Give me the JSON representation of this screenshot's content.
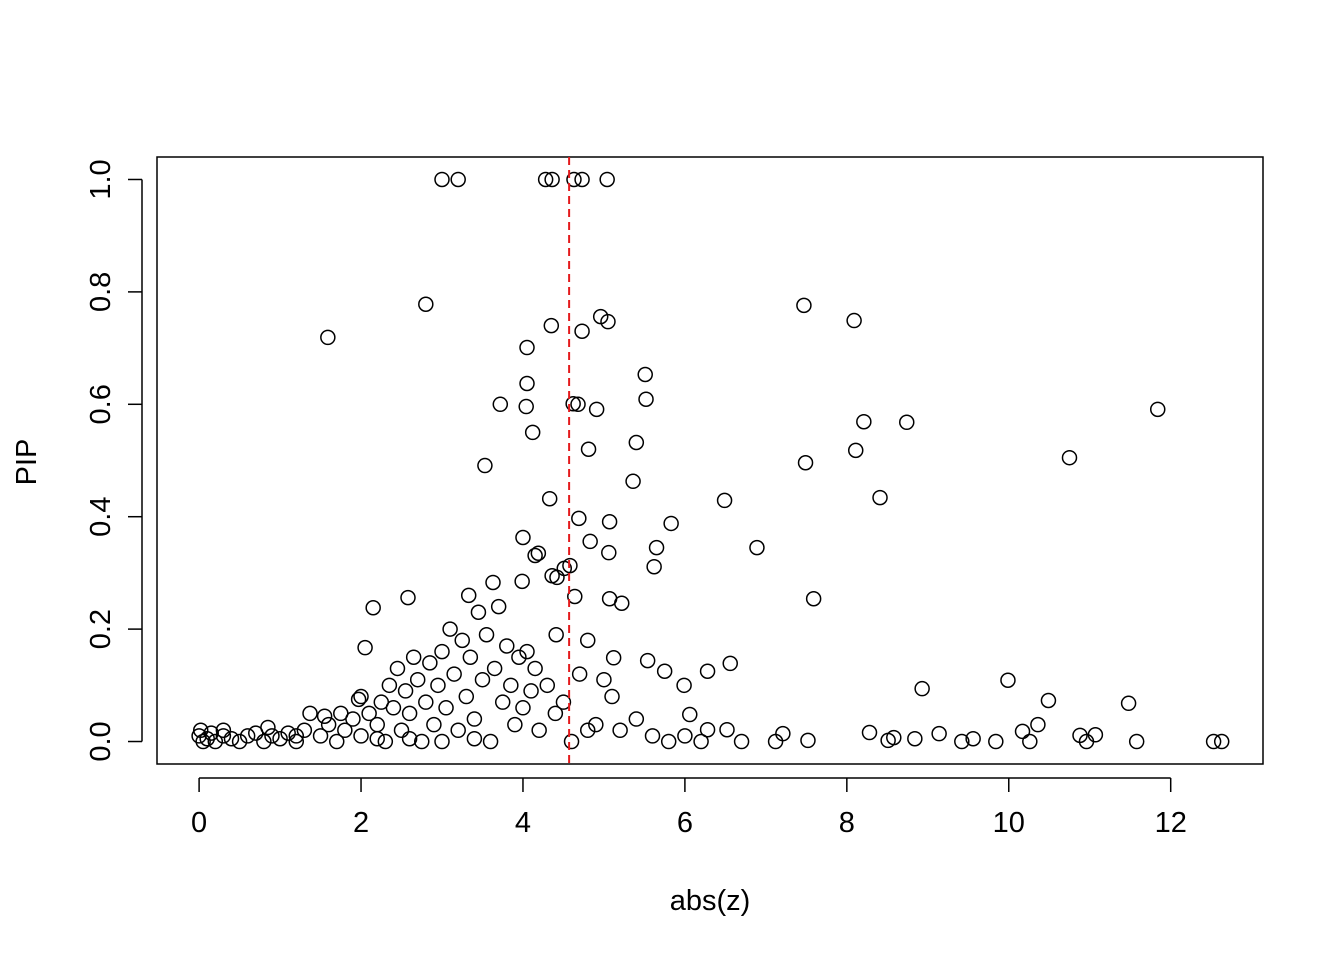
{
  "chart_data": {
    "type": "scatter",
    "x_label": "abs(z)",
    "y_label": "PIP",
    "xlim": [
      -0.52,
      13.14
    ],
    "ylim": [
      -0.04,
      1.04
    ],
    "xticks": [
      0,
      2,
      4,
      6,
      8,
      10,
      12
    ],
    "yticks": [
      {
        "value": 0,
        "label": "0.0"
      },
      {
        "value": 0.2,
        "label": "0.2"
      },
      {
        "value": 0.4,
        "label": "0.4"
      },
      {
        "value": 0.6,
        "label": "0.6"
      },
      {
        "value": 0.8,
        "label": "0.8"
      },
      {
        "value": 1,
        "label": "1.0"
      }
    ],
    "color": "#000000",
    "vline": {
      "x": 4.57,
      "color": "#e41a1c"
    },
    "x": [
      3.0,
      3.2,
      4.28,
      4.36,
      4.63,
      4.73,
      5.04,
      2.8,
      1.59,
      7.47,
      8.09,
      4.96,
      5.05,
      4.35,
      4.73,
      4.05,
      4.05,
      5.51,
      5.52,
      3.72,
      4.04,
      4.62,
      4.68,
      4.91,
      11.84,
      8.21,
      8.74,
      4.12,
      5.4,
      8.11,
      4.81,
      3.53,
      7.49,
      10.75,
      5.36,
      8.41,
      4.33,
      6.49,
      4.69,
      5.07,
      5.83,
      4.0,
      4.83,
      6.89,
      5.65,
      5.06,
      4.15,
      4.19,
      5.62,
      4.58,
      4.51,
      4.36,
      4.42,
      3.99,
      3.63,
      4.64,
      2.58,
      7.59,
      5.07,
      5.22,
      3.33,
      2.15,
      2.05,
      4.8,
      4.41,
      6.56,
      5.12,
      5.54,
      6.28,
      5.75,
      5.99,
      8.93,
      9.99,
      10.49,
      11.48,
      10.36,
      6.06,
      10.17,
      11.07,
      10.88,
      9.14,
      8.28,
      7.21,
      12.53,
      12.63,
      11.58,
      9.84,
      9.42,
      9.56,
      8.84,
      8.51,
      8.58,
      7.52,
      7.12,
      6.7,
      6.52,
      6.28,
      10.26,
      10.96,
      0.0,
      0.02,
      0.05,
      0.1,
      0.15,
      0.2,
      0.3,
      0.3,
      0.4,
      0.5,
      0.6,
      0.7,
      0.8,
      0.85,
      0.9,
      1.0,
      1.1,
      1.2,
      1.3,
      1.37,
      1.5,
      1.55,
      1.6,
      1.7,
      1.75,
      1.8,
      1.9,
      1.97,
      2.0,
      2.0,
      2.1,
      2.2,
      2.25,
      2.3,
      2.35,
      2.4,
      2.45,
      2.5,
      2.55,
      2.6,
      2.65,
      2.7,
      2.75,
      2.8,
      2.85,
      2.9,
      2.95,
      3.0,
      3.05,
      3.1,
      3.15,
      3.2,
      3.25,
      3.3,
      3.35,
      3.4,
      3.45,
      3.5,
      3.55,
      3.6,
      3.65,
      3.7,
      3.75,
      3.8,
      3.85,
      3.9,
      3.95,
      4.0,
      4.05,
      4.1,
      4.15,
      4.2,
      4.3,
      4.4,
      4.5,
      4.6,
      4.7,
      4.8,
      4.9,
      5.0,
      5.1,
      5.2,
      5.4,
      5.6,
      5.8,
      6.0,
      6.2,
      2.6,
      3.0,
      3.4,
      1.2,
      2.2
    ],
    "y": [
      1,
      1,
      1,
      1,
      1,
      1,
      1,
      0.778,
      0.719,
      0.776,
      0.749,
      0.756,
      0.747,
      0.74,
      0.73,
      0.701,
      0.637,
      0.653,
      0.609,
      0.6,
      0.596,
      0.601,
      0.6,
      0.591,
      0.591,
      0.569,
      0.568,
      0.55,
      0.532,
      0.518,
      0.52,
      0.491,
      0.496,
      0.505,
      0.463,
      0.434,
      0.432,
      0.429,
      0.397,
      0.391,
      0.388,
      0.363,
      0.356,
      0.345,
      0.345,
      0.336,
      0.331,
      0.335,
      0.311,
      0.313,
      0.308,
      0.295,
      0.292,
      0.285,
      0.283,
      0.258,
      0.256,
      0.254,
      0.254,
      0.246,
      0.26,
      0.238,
      0.167,
      0.18,
      0.19,
      0.139,
      0.149,
      0.144,
      0.125,
      0.125,
      0.1,
      0.094,
      0.109,
      0.073,
      0.068,
      0.03,
      0.048,
      0.018,
      0.012,
      0.011,
      0.014,
      0.016,
      0.014,
      0,
      0,
      0,
      0,
      0,
      0.005,
      0.005,
      0.002,
      0.007,
      0.002,
      0,
      0,
      0.021,
      0.021,
      0,
      0,
      0.01,
      0.02,
      0,
      0.005,
      0.015,
      0,
      0.01,
      0.02,
      0.005,
      0,
      0.01,
      0.015,
      0,
      0.025,
      0.01,
      0.005,
      0.015,
      0,
      0.02,
      0.05,
      0.01,
      0.045,
      0.03,
      0,
      0.05,
      0.02,
      0.04,
      0.075,
      0.08,
      0.01,
      0.05,
      0.03,
      0.07,
      0,
      0.1,
      0.06,
      0.13,
      0.02,
      0.09,
      0.05,
      0.15,
      0.11,
      0,
      0.07,
      0.14,
      0.03,
      0.1,
      0.16,
      0.06,
      0.2,
      0.12,
      0.02,
      0.18,
      0.08,
      0.15,
      0.04,
      0.23,
      0.11,
      0.19,
      0,
      0.13,
      0.24,
      0.07,
      0.17,
      0.1,
      0.03,
      0.15,
      0.06,
      0.16,
      0.09,
      0.13,
      0.02,
      0.1,
      0.05,
      0.07,
      0,
      0.12,
      0.02,
      0.03,
      0.11,
      0.08,
      0.02,
      0.04,
      0.01,
      0,
      0.01,
      0,
      0.005,
      0,
      0.005,
      0.01,
      0.005
    ]
  }
}
